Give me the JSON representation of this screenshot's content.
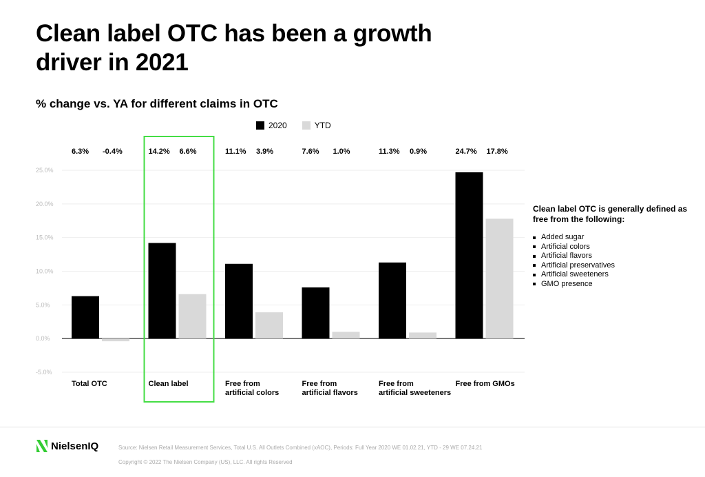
{
  "header": {
    "title": "Clean label OTC has been a growth driver in 2021",
    "subtitle": "% change vs. YA for different claims in OTC"
  },
  "chart_data": {
    "type": "bar",
    "categories": [
      [
        "Total OTC"
      ],
      [
        "Clean label"
      ],
      [
        "Free from",
        "artificial colors"
      ],
      [
        "Free from",
        "artificial flavors"
      ],
      [
        "Free from",
        "artificial sweeteners"
      ],
      [
        "Free from GMOs"
      ]
    ],
    "series": [
      {
        "name": "2020",
        "color": "#000000",
        "values": [
          6.3,
          14.2,
          11.1,
          7.6,
          11.3,
          24.7
        ]
      },
      {
        "name": "YTD",
        "color": "#d9d9d9",
        "values": [
          -0.4,
          6.6,
          3.9,
          1.0,
          0.9,
          17.8
        ]
      }
    ],
    "value_labels": [
      [
        "6.3%",
        "-0.4%"
      ],
      [
        "14.2%",
        "6.6%"
      ],
      [
        "11.1%",
        "3.9%"
      ],
      [
        "7.6%",
        "1.0%"
      ],
      [
        "11.3%",
        "0.9%"
      ],
      [
        "24.7%",
        "17.8%"
      ]
    ],
    "y_ticks": [
      "25.0%",
      "20.0%",
      "15.0%",
      "10.0%",
      "5.0%",
      "0.0%",
      "-5.0%"
    ],
    "y_tick_values": [
      25,
      20,
      15,
      10,
      5,
      0,
      -5
    ],
    "ylim": [
      -5,
      25
    ],
    "grid": true,
    "highlight_category": 1,
    "highlight_color": "#44dd44",
    "legend_position": "top"
  },
  "definition": {
    "title": "Clean label OTC is generally defined as free from the following:",
    "items": [
      "Added sugar",
      "Artificial colors",
      "Artificial flavors",
      "Artificial preservatives",
      "Artificial sweeteners",
      "GMO presence"
    ]
  },
  "footer": {
    "logo_text": "NielsenIQ",
    "logo_color": "#33cc33",
    "source": "Source: Nielsen Retail Measurement Services, Total U.S. All Outlets Combined (xAOC), Periods: Full Year 2020 WE 01.02.21, YTD - 29 WE 07.24.21",
    "copyright": "Copyright © 2022 The Nielsen Company (US), LLC. All rights Reserved"
  }
}
